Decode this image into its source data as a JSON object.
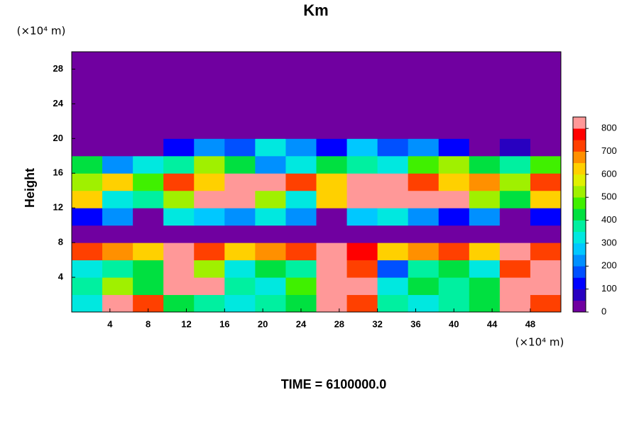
{
  "chart_data": {
    "type": "heatmap",
    "title": "Km",
    "ylabel": "Height",
    "y_unit": "(×10⁴ m)",
    "x_unit": "(×10⁴ m)",
    "footer": "TIME = 6100000.0",
    "xlim": [
      0,
      51.2
    ],
    "ylim": [
      0,
      30
    ],
    "xticks": [
      4,
      8,
      12,
      16,
      20,
      24,
      28,
      32,
      36,
      40,
      44,
      48
    ],
    "yticks": [
      4,
      8,
      12,
      16,
      20,
      24,
      28
    ],
    "x": [
      1.6,
      4.8,
      8.0,
      11.2,
      14.4,
      17.6,
      20.8,
      24.0,
      27.2,
      30.4,
      33.6,
      36.8,
      40.0,
      43.2,
      46.4,
      49.6
    ],
    "y": [
      1,
      3,
      5,
      7,
      9,
      11,
      13,
      15,
      17,
      19,
      21,
      23,
      25,
      27,
      29
    ],
    "z": [
      [
        300,
        800,
        700,
        400,
        350,
        300,
        350,
        400,
        800,
        700,
        350,
        300,
        350,
        400,
        800,
        700
      ],
      [
        350,
        500,
        400,
        800,
        800,
        350,
        300,
        450,
        800,
        800,
        300,
        400,
        350,
        400,
        800,
        800
      ],
      [
        300,
        350,
        400,
        800,
        500,
        300,
        400,
        350,
        800,
        700,
        150,
        350,
        400,
        300,
        700,
        800
      ],
      [
        700,
        650,
        600,
        800,
        700,
        600,
        650,
        700,
        800,
        750,
        600,
        650,
        700,
        600,
        800,
        700
      ],
      [
        0,
        0,
        0,
        0,
        0,
        0,
        0,
        0,
        0,
        0,
        0,
        0,
        0,
        0,
        0,
        0
      ],
      [
        100,
        200,
        0,
        300,
        250,
        200,
        300,
        200,
        0,
        250,
        300,
        200,
        100,
        200,
        0,
        100
      ],
      [
        600,
        300,
        350,
        500,
        800,
        800,
        500,
        300,
        600,
        800,
        800,
        800,
        800,
        500,
        400,
        600
      ],
      [
        500,
        600,
        450,
        700,
        600,
        800,
        800,
        700,
        600,
        800,
        800,
        700,
        600,
        650,
        500,
        700
      ],
      [
        400,
        200,
        300,
        350,
        500,
        400,
        200,
        300,
        400,
        350,
        300,
        450,
        500,
        400,
        350,
        450
      ],
      [
        0,
        0,
        0,
        100,
        200,
        150,
        300,
        200,
        100,
        250,
        150,
        200,
        100,
        0,
        50,
        0
      ],
      [
        0,
        0,
        0,
        0,
        0,
        0,
        0,
        0,
        0,
        0,
        0,
        0,
        0,
        0,
        0,
        0
      ],
      [
        0,
        0,
        0,
        0,
        0,
        0,
        0,
        0,
        0,
        0,
        0,
        0,
        0,
        0,
        0,
        0
      ],
      [
        0,
        0,
        0,
        0,
        0,
        0,
        0,
        0,
        0,
        0,
        0,
        0,
        0,
        0,
        0,
        0
      ],
      [
        0,
        0,
        0,
        0,
        0,
        0,
        0,
        0,
        0,
        0,
        0,
        0,
        0,
        0,
        0,
        0
      ],
      [
        0,
        0,
        0,
        0,
        0,
        0,
        0,
        0,
        0,
        0,
        0,
        0,
        0,
        0,
        0,
        0
      ]
    ],
    "clim": [
      0,
      850
    ],
    "cticks": [
      0,
      100,
      200,
      300,
      400,
      500,
      600,
      700,
      800
    ],
    "colors": [
      "#7000a0",
      "#2800c0",
      "#0000ff",
      "#0050ff",
      "#0090ff",
      "#00c8ff",
      "#00e8e0",
      "#00f0a0",
      "#00e040",
      "#40f000",
      "#a0f000",
      "#e0f000",
      "#ffd000",
      "#ff9000",
      "#ff4000",
      "#ff0000",
      "#ff9898"
    ]
  }
}
